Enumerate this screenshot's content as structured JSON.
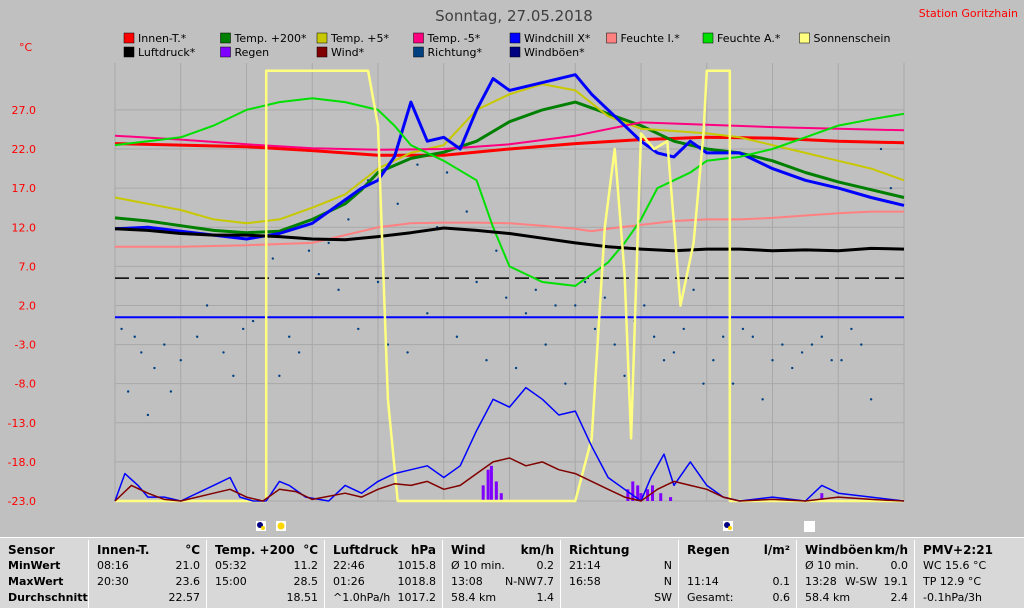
{
  "chart": {
    "title": "Sonntag, 27.05.2018",
    "station": "Station Goritzhain",
    "unit": "°C"
  },
  "chart_data": {
    "type": "line",
    "title": "Sonntag, 27.05.2018",
    "ylabel": "°C",
    "ylim": [
      -23.0,
      33.0
    ],
    "yticks": [
      27.0,
      22.0,
      17.0,
      12.0,
      7.0,
      2.0,
      -3.0,
      -8.0,
      -13.0,
      -18.0,
      -23.0
    ],
    "xlim": [
      0,
      24
    ],
    "grid": true,
    "legend_position": "top",
    "legend": [
      {
        "label": "Innen-T.*",
        "color": "#ff0000"
      },
      {
        "label": "Temp. +200*",
        "color": "#008000"
      },
      {
        "label": "Temp. +5*",
        "color": "#c8c800"
      },
      {
        "label": "Temp. -5*",
        "color": "#ff0080"
      },
      {
        "label": "Windchill X*",
        "color": "#0000ff"
      },
      {
        "label": "Feuchte I.*",
        "color": "#ff8080"
      },
      {
        "label": "Feuchte A.*",
        "color": "#00e000"
      },
      {
        "label": "Sonnenschein",
        "color": "#ffff80"
      },
      {
        "label": "Luftdruck*",
        "color": "#000000"
      },
      {
        "label": "Regen",
        "color": "#8000ff"
      },
      {
        "label": "Wind*",
        "color": "#800000"
      },
      {
        "label": "Richtung*",
        "color": "#004080"
      },
      {
        "label": "Windböen*",
        "color": "#000080"
      }
    ],
    "reference_lines": [
      {
        "y": 5.5,
        "style": "dashed",
        "color": "#000000"
      },
      {
        "y": 0.5,
        "style": "solid",
        "color": "#0000ff"
      }
    ],
    "series": [
      {
        "name": "Innen-T.*",
        "color": "#ff0000",
        "width": 3,
        "x": [
          0,
          2,
          4,
          6,
          8,
          10,
          12,
          14,
          16,
          18,
          20,
          22,
          24
        ],
        "y": [
          22.7,
          22.5,
          22.3,
          21.8,
          21.2,
          21.2,
          22.0,
          22.7,
          23.2,
          23.5,
          23.4,
          23.0,
          22.8
        ]
      },
      {
        "name": "Temp. +200*",
        "color": "#008000",
        "width": 3,
        "x": [
          0,
          1,
          2,
          3,
          4,
          5,
          6,
          7,
          7.5,
          8,
          9,
          10,
          11,
          12,
          13,
          14,
          15,
          16,
          17,
          18,
          19,
          20,
          21,
          22,
          23,
          24
        ],
        "y": [
          13.2,
          12.8,
          12.2,
          11.6,
          11.3,
          11.5,
          13.0,
          15.0,
          16.8,
          19.0,
          20.8,
          21.6,
          23.0,
          25.5,
          27.0,
          28.0,
          26.5,
          25.0,
          23.0,
          22.0,
          21.5,
          20.5,
          19.0,
          17.8,
          16.8,
          15.8
        ]
      },
      {
        "name": "Temp. +5*",
        "color": "#c8c800",
        "width": 2,
        "x": [
          0,
          1,
          2,
          3,
          4,
          5,
          6,
          7,
          8,
          9,
          10,
          11,
          12,
          13,
          14,
          15,
          16,
          17,
          18,
          19,
          20,
          21,
          22,
          23,
          24
        ],
        "y": [
          15.8,
          15.0,
          14.2,
          13.0,
          12.5,
          13.0,
          14.5,
          16.2,
          19.5,
          21.5,
          22.5,
          27.0,
          29.0,
          30.3,
          29.5,
          26.2,
          24.6,
          24.3,
          24.0,
          23.5,
          22.5,
          21.5,
          20.5,
          19.5,
          18.0
        ]
      },
      {
        "name": "Temp. -5*",
        "color": "#ff0080",
        "width": 2,
        "x": [
          0,
          2,
          4,
          6,
          8,
          10,
          12,
          14,
          16,
          18,
          20,
          22,
          24
        ],
        "y": [
          23.7,
          23.2,
          22.6,
          22.1,
          21.9,
          22.0,
          22.6,
          23.7,
          25.4,
          25.1,
          24.8,
          24.6,
          24.4
        ]
      },
      {
        "name": "Windchill X*",
        "color": "#0000ff",
        "width": 3,
        "x": [
          0,
          1,
          2,
          3,
          4,
          5,
          6,
          6.5,
          7,
          7.5,
          8,
          8.5,
          9,
          9.5,
          10,
          10.5,
          11,
          11.5,
          12,
          13,
          14,
          14.5,
          15,
          15.5,
          16,
          16.5,
          17,
          17.5,
          18,
          19,
          20,
          21,
          22,
          23,
          24
        ],
        "y": [
          11.8,
          12.0,
          11.5,
          11.0,
          10.5,
          11.2,
          12.5,
          14.0,
          15.5,
          17.0,
          18.0,
          21.0,
          28.0,
          23.0,
          23.5,
          22.0,
          27.0,
          31.0,
          29.5,
          30.5,
          31.5,
          29.0,
          27.0,
          25.0,
          23.0,
          21.5,
          21.0,
          23.0,
          21.5,
          21.5,
          19.5,
          18.0,
          17.0,
          15.8,
          14.8
        ]
      },
      {
        "name": "Feuchte I.*",
        "color": "#ff8080",
        "width": 2,
        "x": [
          0,
          2,
          4,
          6,
          7,
          8,
          9,
          10,
          11,
          12,
          13,
          14,
          14.5,
          15,
          16,
          17,
          18,
          19,
          20,
          21,
          22,
          23,
          24
        ],
        "y": [
          9.5,
          9.5,
          9.7,
          10.0,
          11.0,
          12.0,
          12.5,
          12.6,
          12.6,
          12.5,
          12.2,
          11.8,
          11.5,
          11.8,
          12.3,
          12.8,
          13.0,
          13.0,
          13.2,
          13.5,
          13.8,
          14.0,
          14.0
        ]
      },
      {
        "name": "Feuchte A.*",
        "color": "#00e000",
        "width": 2,
        "x": [
          0,
          1,
          2,
          3,
          4,
          5,
          6,
          7,
          8,
          8.5,
          9,
          10,
          11,
          11.5,
          12,
          13,
          14,
          15,
          15.5,
          16,
          16.5,
          17,
          17.5,
          18,
          19,
          20,
          21,
          22,
          23,
          24
        ],
        "y": [
          22.5,
          23.0,
          23.5,
          25.0,
          27.0,
          28.0,
          28.5,
          28.0,
          27.0,
          25.0,
          22.5,
          20.5,
          18.0,
          12.0,
          7.0,
          5.0,
          4.5,
          7.5,
          10.0,
          13.0,
          17.0,
          18.0,
          19.0,
          20.5,
          21.0,
          22.0,
          23.5,
          25.0,
          25.8,
          26.5
        ]
      },
      {
        "name": "Luftdruck*",
        "color": "#000000",
        "width": 3,
        "x": [
          0,
          1,
          2,
          3,
          4,
          5,
          6,
          7,
          8,
          9,
          10,
          11,
          12,
          13,
          14,
          15,
          16,
          17,
          18,
          19,
          20,
          21,
          22,
          23,
          24
        ],
        "y": [
          11.8,
          11.6,
          11.2,
          11.0,
          11.0,
          10.8,
          10.5,
          10.4,
          10.8,
          11.3,
          11.9,
          11.6,
          11.2,
          10.6,
          10.0,
          9.5,
          9.2,
          9.0,
          9.2,
          9.2,
          9.0,
          9.1,
          9.0,
          9.3,
          9.2
        ]
      },
      {
        "name": "Sonnenschein",
        "color": "#ffff80",
        "width": 2.5,
        "x": [
          0,
          4.6,
          4.6,
          7.7,
          8.0,
          8.3,
          8.6,
          14.0,
          14.5,
          14.9,
          15.2,
          15.5,
          15.7,
          16.0,
          16.4,
          16.8,
          17.2,
          17.6,
          17.9,
          18.0,
          18.2,
          18.7,
          18.7,
          24
        ],
        "y": [
          -23,
          -23,
          32.0,
          32.0,
          25.0,
          -10.0,
          -23,
          -23,
          -15.0,
          12.0,
          22.0,
          6.0,
          -15.0,
          24.0,
          22.0,
          23.0,
          2.0,
          10.0,
          24.0,
          32.0,
          32.0,
          32.0,
          -23,
          -23
        ]
      },
      {
        "name": "Windböen*",
        "color": "#0000ff",
        "width": 1.5,
        "x": [
          0,
          0.3,
          0.7,
          1.0,
          1.5,
          2.0,
          3.0,
          3.5,
          3.8,
          4.2,
          4.6,
          5.0,
          5.3,
          5.8,
          6.5,
          7.0,
          7.5,
          8.0,
          8.5,
          9.0,
          9.5,
          10.0,
          10.5,
          11.0,
          11.5,
          12.0,
          12.5,
          13.0,
          13.5,
          14.0,
          14.5,
          15.0,
          15.5,
          16.0,
          16.3,
          16.7,
          17.0,
          17.5,
          18.0,
          18.5,
          19.0,
          20.0,
          21.0,
          21.5,
          22.0,
          23.0,
          24.0
        ],
        "y": [
          -23,
          -19.5,
          -21.0,
          -22.5,
          -22.5,
          -23,
          -21.0,
          -20.0,
          -22.5,
          -23,
          -23,
          -20.5,
          -21.0,
          -22.5,
          -23,
          -21.0,
          -22.0,
          -20.5,
          -19.5,
          -19.0,
          -18.5,
          -20.0,
          -18.5,
          -14.0,
          -10.0,
          -11.0,
          -8.5,
          -10.0,
          -12.0,
          -11.5,
          -16.0,
          -20.0,
          -21.5,
          -23,
          -20.0,
          -17.0,
          -21.0,
          -18.0,
          -21.0,
          -22.5,
          -23,
          -22.5,
          -23,
          -21.0,
          -22.0,
          -22.5,
          -23
        ]
      },
      {
        "name": "Wind*",
        "color": "#800000",
        "width": 1.5,
        "x": [
          0,
          0.5,
          1.0,
          1.5,
          2.0,
          3.0,
          3.5,
          4.0,
          4.5,
          5.0,
          5.5,
          6.0,
          7.0,
          7.5,
          8.0,
          8.5,
          9.0,
          9.5,
          10.0,
          10.5,
          11.0,
          11.5,
          12.0,
          12.5,
          13.0,
          13.5,
          14.0,
          14.5,
          15.0,
          15.5,
          16.0,
          16.5,
          17.0,
          17.5,
          18.0,
          18.5,
          19.0,
          20.0,
          21.0,
          22.0,
          23.0,
          24.0
        ],
        "y": [
          -23,
          -21.0,
          -22.0,
          -22.8,
          -23,
          -22.0,
          -21.5,
          -22.5,
          -23,
          -21.5,
          -21.8,
          -22.8,
          -22.0,
          -22.5,
          -21.5,
          -20.8,
          -21.0,
          -20.5,
          -21.5,
          -21.0,
          -19.5,
          -18.0,
          -17.5,
          -18.5,
          -18.0,
          -19.0,
          -19.5,
          -20.5,
          -21.5,
          -22.5,
          -23,
          -21.5,
          -20.5,
          -21.0,
          -21.5,
          -22.5,
          -23,
          -22.8,
          -23,
          -22.5,
          -22.8,
          -23
        ]
      }
    ],
    "bars": {
      "name": "Regen",
      "color": "#8000ff",
      "x": [
        11.2,
        11.35,
        11.45,
        11.6,
        11.75,
        15.6,
        15.75,
        15.9,
        16.0,
        16.2,
        16.35,
        16.6,
        16.9,
        21.5
      ],
      "y": [
        -21.0,
        -19.0,
        -18.5,
        -20.5,
        -22.0,
        -21.5,
        -20.5,
        -21.0,
        -22.0,
        -21.5,
        -21.0,
        -22.0,
        -22.5,
        -22.0
      ]
    },
    "scatter": {
      "name": "Richtung*",
      "color": "#004080",
      "x": [
        0.2,
        0.4,
        0.6,
        0.8,
        1.0,
        1.2,
        1.5,
        1.7,
        2.0,
        2.5,
        2.8,
        3.3,
        3.6,
        3.9,
        4.2,
        4.8,
        5.0,
        5.3,
        5.6,
        5.9,
        6.2,
        6.5,
        6.8,
        7.1,
        7.4,
        7.7,
        8.0,
        8.3,
        8.6,
        8.9,
        9.2,
        9.5,
        9.8,
        10.1,
        10.4,
        10.7,
        11.0,
        11.3,
        11.6,
        11.9,
        12.2,
        12.5,
        12.8,
        13.1,
        13.4,
        13.7,
        14.0,
        14.3,
        14.6,
        14.9,
        15.2,
        15.5,
        15.8,
        16.1,
        16.4,
        16.7,
        17.0,
        17.3,
        17.6,
        17.9,
        18.2,
        18.5,
        18.8,
        19.1,
        19.4,
        19.7,
        20.0,
        20.3,
        20.6,
        20.9,
        21.2,
        21.5,
        21.8,
        22.1,
        22.4,
        22.7,
        23.0,
        23.3,
        23.6
      ],
      "y": [
        -1,
        -9,
        -2,
        -4,
        -12,
        -6,
        -3,
        -9,
        -5,
        -2,
        2,
        -4,
        -7,
        -1,
        0,
        8,
        -7,
        -2,
        -4,
        9,
        6,
        10,
        4,
        13,
        -1,
        18,
        5,
        -3,
        15,
        -4,
        20,
        1,
        12,
        19,
        -2,
        14,
        5,
        -5,
        9,
        3,
        -6,
        1,
        4,
        -3,
        2,
        -8,
        2,
        5,
        -1,
        3,
        -3,
        -7,
        0,
        2,
        -2,
        -5,
        -4,
        -1,
        4,
        -8,
        -5,
        -2,
        -8,
        -1,
        -2,
        -10,
        -5,
        -3,
        -6,
        -4,
        -3,
        -2,
        -5,
        -5,
        -1,
        -3,
        -10,
        22,
        17
      ]
    }
  },
  "stats": {
    "columns": [
      {
        "header": "Sensor",
        "unit": "",
        "rows": [
          {
            "a": "MinWert",
            "b": "",
            "c": ""
          },
          {
            "a": "MaxWert",
            "b": "",
            "c": ""
          },
          {
            "a": "Durchschnitt",
            "b": "",
            "c": ""
          }
        ]
      },
      {
        "header": "Innen-T.",
        "unit": "°C",
        "rows": [
          {
            "a": "08:16",
            "b": "",
            "c": "21.0"
          },
          {
            "a": "20:30",
            "b": "",
            "c": "23.6"
          },
          {
            "a": "",
            "b": "",
            "c": "22.57"
          }
        ]
      },
      {
        "header": "Temp. +200",
        "unit": "°C",
        "rows": [
          {
            "a": "05:32",
            "b": "",
            "c": "11.2"
          },
          {
            "a": "15:00",
            "b": "",
            "c": "28.5"
          },
          {
            "a": "",
            "b": "",
            "c": "18.51"
          }
        ]
      },
      {
        "header": "Luftdruck",
        "unit": "hPa",
        "rows": [
          {
            "a": "22:46",
            "b": "",
            "c": "1015.8"
          },
          {
            "a": "01:26",
            "b": "",
            "c": "1018.8"
          },
          {
            "a": "^1.0hPa/h",
            "b": "",
            "c": "1017.2"
          }
        ]
      },
      {
        "header": "Wind",
        "unit": "km/h",
        "rows": [
          {
            "a": "Ø 10 min.",
            "b": "",
            "c": "0.2"
          },
          {
            "a": "13:08",
            "b": "N-NW",
            "c": "7.7"
          },
          {
            "a": "58.4 km",
            "b": "",
            "c": "1.4"
          }
        ]
      },
      {
        "header": "Richtung",
        "unit": "",
        "rows": [
          {
            "a": "21:14",
            "b": "",
            "c": "N"
          },
          {
            "a": "16:58",
            "b": "",
            "c": "N"
          },
          {
            "a": "",
            "b": "",
            "c": "SW"
          }
        ]
      },
      {
        "header": "Regen",
        "unit": "l/m²",
        "rows": [
          {
            "a": "",
            "b": "",
            "c": ""
          },
          {
            "a": "11:14",
            "b": "",
            "c": "0.1"
          },
          {
            "a": "Gesamt:",
            "b": "",
            "c": "0.6"
          }
        ]
      },
      {
        "header": "Windböen",
        "unit": "km/h",
        "rows": [
          {
            "a": "Ø 10 min.",
            "b": "",
            "c": "0.0"
          },
          {
            "a": "13:28",
            "b": "W-SW",
            "c": "19.1"
          },
          {
            "a": "58.4 km",
            "b": "",
            "c": "2.4"
          }
        ]
      },
      {
        "header": "PMV+2:21",
        "unit": "",
        "rows": [
          {
            "a": "WC 15.6 °C",
            "b": "",
            "c": ""
          },
          {
            "a": "TP 12.9 °C",
            "b": "",
            "c": ""
          },
          {
            "a": "-0.1hPa/3h",
            "b": "",
            "c": ""
          }
        ]
      }
    ]
  }
}
